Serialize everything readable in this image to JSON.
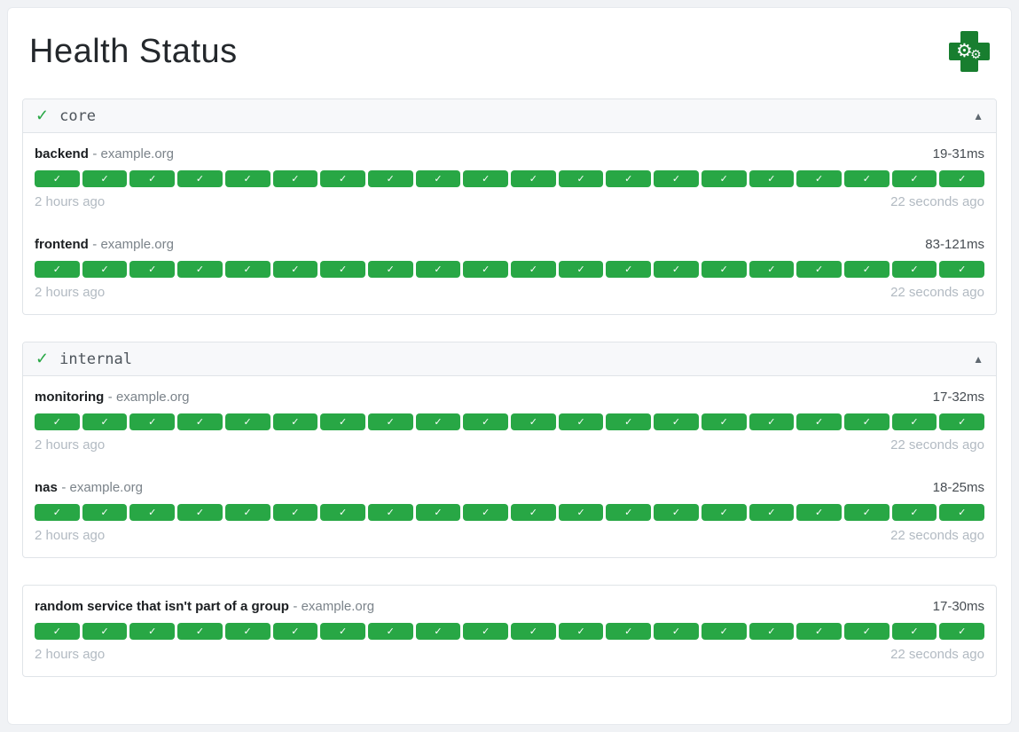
{
  "app": {
    "title": "Health Status"
  },
  "icons": {
    "gear": "⚙",
    "healthy_check": "✓",
    "block_check": "✓",
    "collapse": "▲"
  },
  "labels": {
    "host_separator": "-"
  },
  "colors": {
    "success_green": "#28a745",
    "logo_green": "#187e2f",
    "page_background": "#f0f2f5",
    "group_header_background": "#f7f8fa"
  },
  "groups": [
    {
      "name": "core",
      "status": "healthy",
      "services": [
        {
          "name": "backend",
          "host": "example.org",
          "response_time": "19-31ms",
          "oldest_result": "2 hours ago",
          "newest_result": "22 seconds ago",
          "history_count": 20,
          "history_status": "up"
        },
        {
          "name": "frontend",
          "host": "example.org",
          "response_time": "83-121ms",
          "oldest_result": "2 hours ago",
          "newest_result": "22 seconds ago",
          "history_count": 20,
          "history_status": "up"
        }
      ]
    },
    {
      "name": "internal",
      "status": "healthy",
      "services": [
        {
          "name": "monitoring",
          "host": "example.org",
          "response_time": "17-32ms",
          "oldest_result": "2 hours ago",
          "newest_result": "22 seconds ago",
          "history_count": 20,
          "history_status": "up"
        },
        {
          "name": "nas",
          "host": "example.org",
          "response_time": "18-25ms",
          "oldest_result": "2 hours ago",
          "newest_result": "22 seconds ago",
          "history_count": 20,
          "history_status": "up"
        }
      ]
    },
    {
      "name": null,
      "status": "healthy",
      "services": [
        {
          "name": "random service that isn't part of a group",
          "host": "example.org",
          "response_time": "17-30ms",
          "oldest_result": "2 hours ago",
          "newest_result": "22 seconds ago",
          "history_count": 20,
          "history_status": "up"
        }
      ]
    }
  ]
}
